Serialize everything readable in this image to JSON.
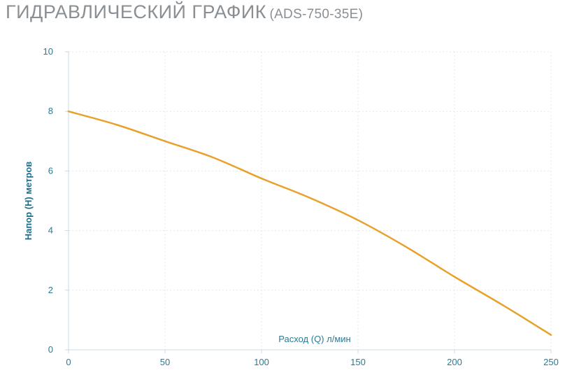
{
  "title": {
    "main": "ГИДРАВЛИЧЕСКИЙ ГРАФИК",
    "model": "(ADS-750-35E)"
  },
  "colors": {
    "line": "#e8a12a",
    "axis_text": "#2b7a93",
    "grid": "#e3e8eb",
    "title": "#8a8f94"
  },
  "chart_data": {
    "type": "line",
    "title": "ГИДРАВЛИЧЕСКИЙ ГРАФИК (ADS-750-35E)",
    "xlabel": "Расход (Q) л/мин",
    "ylabel": "Напор (H) метров",
    "xlim": [
      0,
      250
    ],
    "ylim": [
      0,
      10
    ],
    "x_ticks": [
      0,
      50,
      100,
      150,
      200,
      250
    ],
    "y_ticks": [
      0,
      2,
      4,
      6,
      8,
      10
    ],
    "grid": true,
    "series": [
      {
        "x": [
          0,
          25,
          50,
          75,
          100,
          125,
          150,
          175,
          200,
          225,
          250
        ],
        "y": [
          8.0,
          7.55,
          7.0,
          6.45,
          5.75,
          5.1,
          4.35,
          3.45,
          2.45,
          1.5,
          0.5
        ]
      }
    ]
  }
}
